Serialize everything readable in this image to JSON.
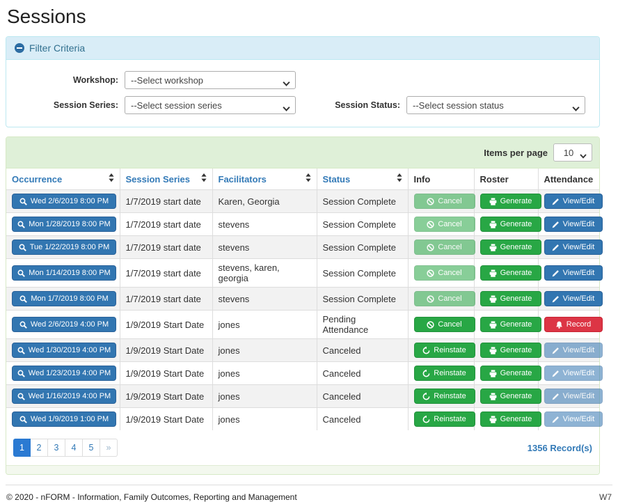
{
  "page": {
    "title": "Sessions"
  },
  "filter": {
    "header": "Filter Criteria",
    "collapse_icon": "minus-circle-icon",
    "fields": [
      {
        "label": "Workshop:",
        "value": "--Select workshop"
      },
      {
        "label": "Session Series:",
        "value": "--Select session series"
      },
      {
        "label": "Session Status:",
        "value": "--Select session status"
      }
    ]
  },
  "table": {
    "items_per_page_label": "Items per page",
    "items_per_page_value": "10",
    "columns": [
      {
        "label": "Occurrence",
        "sortable": true
      },
      {
        "label": "Session Series",
        "sortable": true
      },
      {
        "label": "Facilitators",
        "sortable": true
      },
      {
        "label": "Status",
        "sortable": true
      },
      {
        "label": "Info",
        "sortable": false
      },
      {
        "label": "Roster",
        "sortable": false
      },
      {
        "label": "Attendance",
        "sortable": false
      }
    ],
    "rows": [
      {
        "occurrence": "Wed 2/6/2019 8:00 PM",
        "series": "1/7/2019 start date",
        "facilitators": "Karen, Georgia",
        "status": "Session Complete",
        "info": {
          "label": "Cancel",
          "icon": "ban-icon",
          "variant": "green",
          "disabled": true
        },
        "roster": {
          "label": "Generate",
          "icon": "printer-icon",
          "variant": "green",
          "disabled": false
        },
        "attendance": {
          "label": "View/Edit",
          "icon": "pencil-icon",
          "variant": "blue",
          "disabled": false
        }
      },
      {
        "occurrence": "Mon 1/28/2019 8:00 PM",
        "series": "1/7/2019 start date",
        "facilitators": "stevens",
        "status": "Session Complete",
        "info": {
          "label": "Cancel",
          "icon": "ban-icon",
          "variant": "green",
          "disabled": true
        },
        "roster": {
          "label": "Generate",
          "icon": "printer-icon",
          "variant": "green",
          "disabled": false
        },
        "attendance": {
          "label": "View/Edit",
          "icon": "pencil-icon",
          "variant": "blue",
          "disabled": false
        }
      },
      {
        "occurrence": "Tue 1/22/2019 8:00 PM",
        "series": "1/7/2019 start date",
        "facilitators": "stevens",
        "status": "Session Complete",
        "info": {
          "label": "Cancel",
          "icon": "ban-icon",
          "variant": "green",
          "disabled": true
        },
        "roster": {
          "label": "Generate",
          "icon": "printer-icon",
          "variant": "green",
          "disabled": false
        },
        "attendance": {
          "label": "View/Edit",
          "icon": "pencil-icon",
          "variant": "blue",
          "disabled": false
        }
      },
      {
        "occurrence": "Mon 1/14/2019 8:00 PM",
        "series": "1/7/2019 start date",
        "facilitators": "stevens, karen, georgia",
        "status": "Session Complete",
        "info": {
          "label": "Cancel",
          "icon": "ban-icon",
          "variant": "green",
          "disabled": true
        },
        "roster": {
          "label": "Generate",
          "icon": "printer-icon",
          "variant": "green",
          "disabled": false
        },
        "attendance": {
          "label": "View/Edit",
          "icon": "pencil-icon",
          "variant": "blue",
          "disabled": false
        }
      },
      {
        "occurrence": "Mon 1/7/2019 8:00 PM",
        "series": "1/7/2019 start date",
        "facilitators": "stevens",
        "status": "Session Complete",
        "info": {
          "label": "Cancel",
          "icon": "ban-icon",
          "variant": "green",
          "disabled": true
        },
        "roster": {
          "label": "Generate",
          "icon": "printer-icon",
          "variant": "green",
          "disabled": false
        },
        "attendance": {
          "label": "View/Edit",
          "icon": "pencil-icon",
          "variant": "blue",
          "disabled": false
        }
      },
      {
        "occurrence": "Wed 2/6/2019 4:00 PM",
        "series": "1/9/2019 Start Date",
        "facilitators": "jones",
        "status": "Pending Attendance",
        "info": {
          "label": "Cancel",
          "icon": "ban-icon",
          "variant": "green",
          "disabled": false
        },
        "roster": {
          "label": "Generate",
          "icon": "printer-icon",
          "variant": "green",
          "disabled": false
        },
        "attendance": {
          "label": "Record",
          "icon": "bell-icon",
          "variant": "red",
          "disabled": false
        }
      },
      {
        "occurrence": "Wed 1/30/2019 4:00 PM",
        "series": "1/9/2019 Start Date",
        "facilitators": "jones",
        "status": "Canceled",
        "info": {
          "label": "Reinstate",
          "icon": "undo-icon",
          "variant": "green",
          "disabled": false
        },
        "roster": {
          "label": "Generate",
          "icon": "printer-icon",
          "variant": "green",
          "disabled": false
        },
        "attendance": {
          "label": "View/Edit",
          "icon": "pencil-icon",
          "variant": "blue",
          "disabled": true
        }
      },
      {
        "occurrence": "Wed 1/23/2019 4:00 PM",
        "series": "1/9/2019 Start Date",
        "facilitators": "jones",
        "status": "Canceled",
        "info": {
          "label": "Reinstate",
          "icon": "undo-icon",
          "variant": "green",
          "disabled": false
        },
        "roster": {
          "label": "Generate",
          "icon": "printer-icon",
          "variant": "green",
          "disabled": false
        },
        "attendance": {
          "label": "View/Edit",
          "icon": "pencil-icon",
          "variant": "blue",
          "disabled": true
        }
      },
      {
        "occurrence": "Wed 1/16/2019 4:00 PM",
        "series": "1/9/2019 Start Date",
        "facilitators": "jones",
        "status": "Canceled",
        "info": {
          "label": "Reinstate",
          "icon": "undo-icon",
          "variant": "green",
          "disabled": false
        },
        "roster": {
          "label": "Generate",
          "icon": "printer-icon",
          "variant": "green",
          "disabled": false
        },
        "attendance": {
          "label": "View/Edit",
          "icon": "pencil-icon",
          "variant": "blue",
          "disabled": true
        }
      },
      {
        "occurrence": "Wed 1/9/2019 1:00 PM",
        "series": "1/9/2019 Start Date",
        "facilitators": "jones",
        "status": "Canceled",
        "info": {
          "label": "Reinstate",
          "icon": "undo-icon",
          "variant": "green",
          "disabled": false
        },
        "roster": {
          "label": "Generate",
          "icon": "printer-icon",
          "variant": "green",
          "disabled": false
        },
        "attendance": {
          "label": "View/Edit",
          "icon": "pencil-icon",
          "variant": "blue",
          "disabled": true
        }
      }
    ],
    "pagination": {
      "pages": [
        "1",
        "2",
        "3",
        "4",
        "5",
        "»"
      ],
      "active": "1"
    },
    "record_count": "1356 Record(s)"
  },
  "colors": {
    "accent_blue": "#3276b1",
    "success_green": "#28a745",
    "danger_red": "#dc3545",
    "filter_header_bg": "#d9edf7",
    "table_header_bg": "#dff0d8",
    "active_page_bg": "#2b7ad2"
  },
  "footer": {
    "copyright": "© 2020 - nFORM - Information, Family Outcomes, Reporting and Management",
    "version": "W7"
  }
}
